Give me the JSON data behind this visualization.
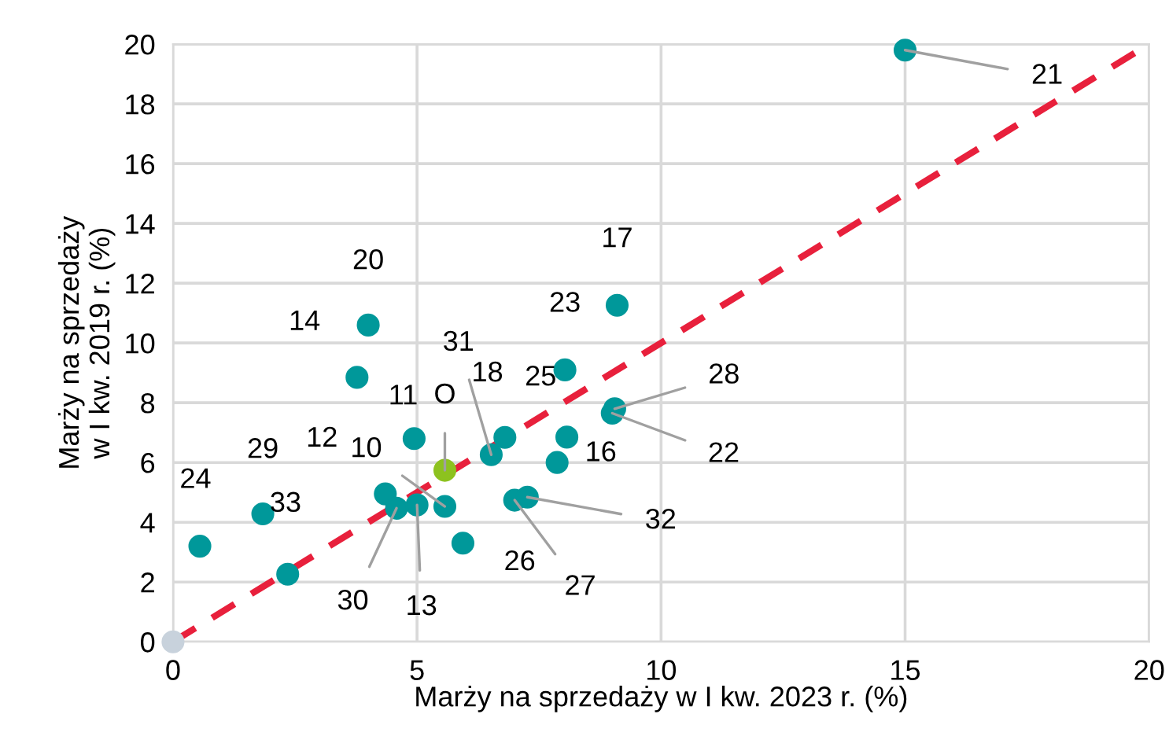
{
  "chart_data": {
    "type": "scatter",
    "xlabel": "Marży na sprzedaży w I kw. 2023 r. (%)",
    "ylabel": "Marży na sprzedaży\nw I kw. 2019 r. (%)",
    "xlim": [
      0,
      20
    ],
    "xticks": [
      0,
      5,
      10,
      15,
      20
    ],
    "ylim": [
      0,
      20
    ],
    "yticks": [
      0,
      2,
      4,
      6,
      8,
      10,
      12,
      14,
      16,
      18,
      20
    ],
    "grid": true,
    "marker": "circle",
    "series": [
      {
        "color": "#00989a",
        "x": [
          15.0,
          4.0,
          3.77,
          4.94,
          4.35,
          5.57,
          4.58,
          5.0,
          5.94,
          6.52,
          6.8,
          8.07,
          8.03,
          9.1,
          7.87,
          7.0,
          7.26,
          9.05,
          9.0,
          0.55,
          1.84,
          2.35
        ],
        "values": [
          19.8,
          10.6,
          8.85,
          6.8,
          4.95,
          4.53,
          4.47,
          4.58,
          3.3,
          6.26,
          6.84,
          6.85,
          9.1,
          11.26,
          6.0,
          4.74,
          4.84,
          7.8,
          7.65,
          3.2,
          4.28,
          2.26
        ]
      },
      {
        "color": "#8dc21f",
        "x": [
          5.57
        ],
        "values": [
          5.74
        ]
      },
      {
        "color": "#c8d2dc",
        "x": [
          0
        ],
        "values": [
          0
        ]
      },
      {
        "type": "line",
        "color": "#e8203c",
        "line_style": "dashed",
        "marker": "none",
        "x": [
          0,
          20
        ],
        "values": [
          0,
          20
        ]
      }
    ],
    "annotations": [
      {
        "text": "21",
        "x": 15.0,
        "y": 19.8
      },
      {
        "text": "20",
        "x": 4.0,
        "y": 10.6
      },
      {
        "text": "14",
        "x": 3.77,
        "y": 8.85
      },
      {
        "text": "11",
        "x": 4.94,
        "y": 6.8
      },
      {
        "text": "12",
        "x": 4.35,
        "y": 4.95
      },
      {
        "text": "10",
        "x": 5.57,
        "y": 4.53
      },
      {
        "text": "30",
        "x": 4.58,
        "y": 4.47
      },
      {
        "text": "13",
        "x": 5.0,
        "y": 4.58
      },
      {
        "text": "26",
        "x": 5.94,
        "y": 3.3
      },
      {
        "text": "31",
        "x": 6.52,
        "y": 6.26
      },
      {
        "text": "18",
        "x": 6.8,
        "y": 6.84
      },
      {
        "text": "25",
        "x": 8.07,
        "y": 6.85
      },
      {
        "text": "23",
        "x": 8.03,
        "y": 9.1
      },
      {
        "text": "17",
        "x": 9.1,
        "y": 11.26
      },
      {
        "text": "16",
        "x": 7.87,
        "y": 6.0
      },
      {
        "text": "27",
        "x": 7.0,
        "y": 4.74
      },
      {
        "text": "32",
        "x": 7.26,
        "y": 4.84
      },
      {
        "text": "28",
        "x": 9.05,
        "y": 7.8
      },
      {
        "text": "22",
        "x": 9.0,
        "y": 7.65
      },
      {
        "text": "24",
        "x": 0.55,
        "y": 3.2
      },
      {
        "text": "29",
        "x": 1.84,
        "y": 4.28
      },
      {
        "text": "33",
        "x": 2.35,
        "y": 2.26
      },
      {
        "text": "O",
        "x": 5.57,
        "y": 5.74
      }
    ]
  }
}
